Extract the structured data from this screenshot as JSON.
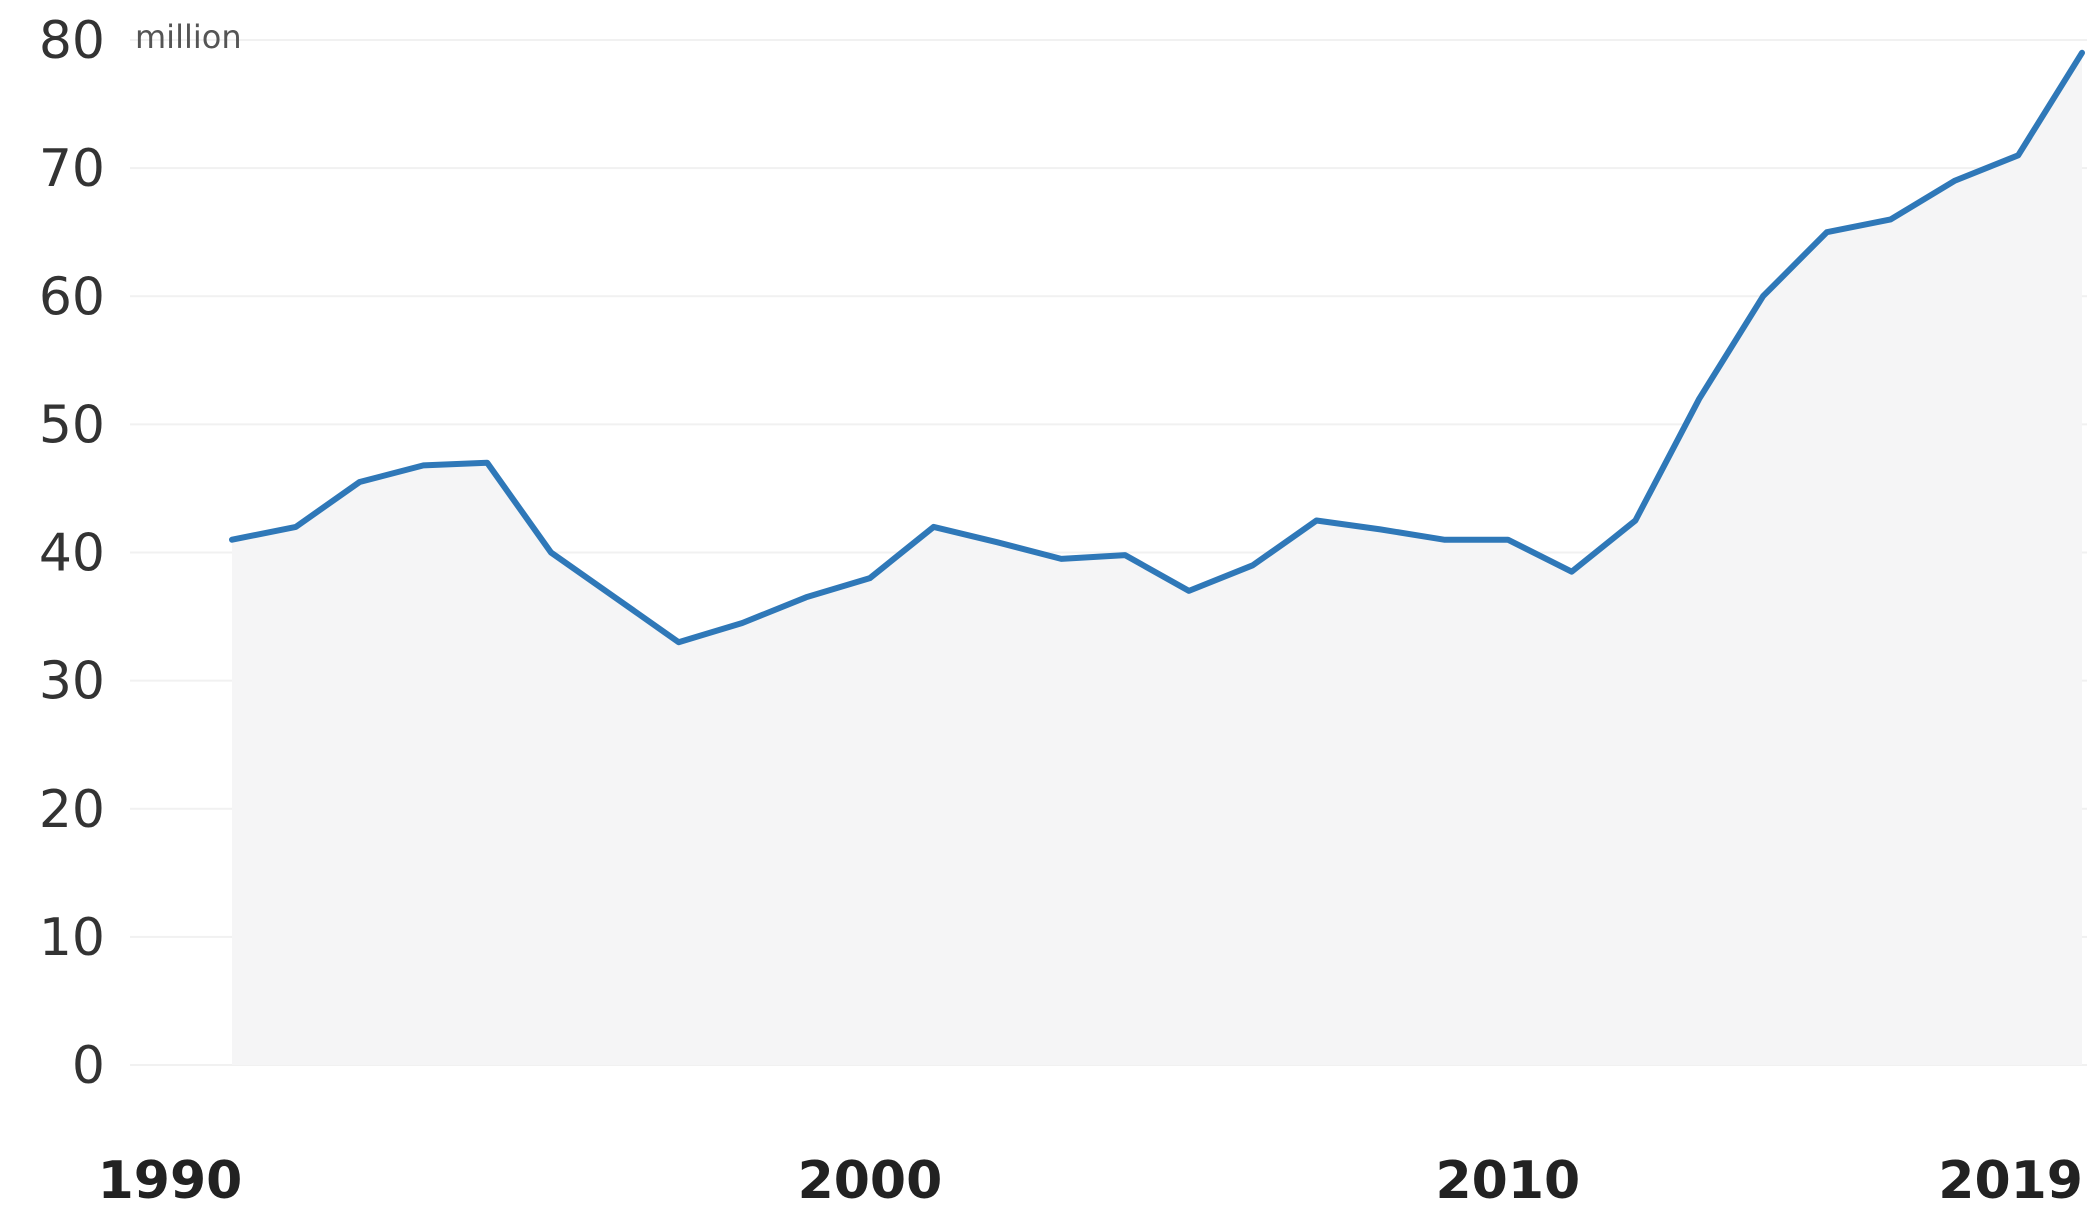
{
  "chart_data": {
    "type": "area",
    "title": "",
    "xlabel": "",
    "ylabel": "",
    "unit_label": "million",
    "xlim": [
      1990,
      2019
    ],
    "ylim": [
      0,
      80
    ],
    "grid": true,
    "x_ticks": [
      1990,
      2000,
      2010,
      2019
    ],
    "x_tick_labels": [
      "1990",
      "2000",
      "2010",
      "2019"
    ],
    "y_ticks": [
      0,
      10,
      20,
      30,
      40,
      50,
      60,
      70,
      80
    ],
    "y_tick_labels": [
      "0",
      "10",
      "20",
      "30",
      "40",
      "50",
      "60",
      "70",
      "80"
    ],
    "line_color": "#2f78b8",
    "fill_color": "#f5f5f6",
    "series": [
      {
        "x": [
          1990,
          1991,
          1992,
          1993,
          1994,
          1995,
          1996,
          1997,
          1998,
          1999,
          2000,
          2001,
          2002,
          2003,
          2004,
          2005,
          2006,
          2007,
          2008,
          2009,
          2010,
          2011,
          2012,
          2013,
          2014,
          2015,
          2016,
          2017,
          2018,
          2019
        ],
        "values": [
          41,
          42,
          45.5,
          46.8,
          47,
          40,
          36.5,
          33,
          34.5,
          36.5,
          38,
          42,
          40.8,
          39.5,
          39.8,
          37,
          39,
          42.5,
          41.8,
          41,
          41,
          38.5,
          42.5,
          52,
          60,
          65,
          66,
          69,
          71,
          79
        ]
      }
    ]
  }
}
